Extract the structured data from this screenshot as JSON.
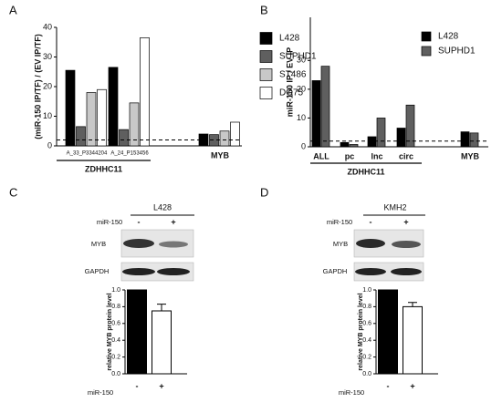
{
  "chart_data": [
    {
      "type": "bar",
      "panel": "A",
      "ylabel": "(miR-150 IP/TF) / (EV IP/TF)",
      "categories": [
        "A_33_P3344204",
        "A_24_P153456",
        "MYB"
      ],
      "group_label": "ZDHHC11",
      "series": [
        {
          "name": "L428",
          "color": "#000000",
          "values": [
            25.5,
            26.5,
            4
          ]
        },
        {
          "name": "SUPHD1",
          "color": "#5f5f5f",
          "values": [
            6.5,
            5.5,
            3.8
          ]
        },
        {
          "name": "ST486",
          "color": "#c8c8c8",
          "values": [
            18,
            14.5,
            5
          ]
        },
        {
          "name": "DG75",
          "color": "#ffffff",
          "values": [
            19,
            36.5,
            8
          ]
        }
      ],
      "ylim": [
        0,
        40
      ],
      "yticks": [
        0,
        10,
        20,
        30,
        40
      ],
      "reference_line": 2
    },
    {
      "type": "bar",
      "panel": "B",
      "ylabel": "miR-150 IP / EV IP",
      "categories": [
        "ALL",
        "pc",
        "lnc",
        "circ",
        "MYB"
      ],
      "group_label": "ZDHHC11",
      "series": [
        {
          "name": "L428",
          "color": "#000000",
          "values": [
            23,
            1.5,
            3.5,
            6.5,
            5.2
          ]
        },
        {
          "name": "SUPHD1",
          "color": "#5f5f5f",
          "values": [
            28,
            0.8,
            10,
            14.5,
            4.8
          ]
        }
      ],
      "ylim": [
        0,
        45
      ],
      "yticks": [
        0,
        10,
        20,
        30
      ],
      "reference_line": 2
    },
    {
      "type": "bar",
      "panel": "C",
      "ylabel": "relative MYB protein level",
      "xlabel": "miR-150",
      "categories": [
        "-",
        "+"
      ],
      "values": [
        1,
        0.75
      ],
      "errors": [
        null,
        0.08
      ],
      "colors": [
        "#000000",
        "#ffffff"
      ],
      "ylim": [
        0,
        1
      ],
      "yticks": [
        {
          "value": 0,
          "label": "0.0"
        },
        {
          "value": 0.2,
          "label": "0.2"
        },
        {
          "value": 0.4,
          "label": "0.4"
        },
        {
          "value": 0.6,
          "label": "0.6"
        },
        {
          "value": 0.8,
          "label": "0.8"
        },
        {
          "value": 1,
          "label": "1.0"
        }
      ]
    },
    {
      "type": "bar",
      "panel": "D",
      "ylabel": "relative MYB protein level",
      "xlabel": "miR-150",
      "categories": [
        "-",
        "+"
      ],
      "values": [
        1,
        0.8
      ],
      "errors": [
        null,
        0.05
      ],
      "colors": [
        "#000000",
        "#ffffff"
      ],
      "ylim": [
        0,
        1
      ],
      "yticks": [
        {
          "value": 0,
          "label": "0.0"
        },
        {
          "value": 0.2,
          "label": "0.2"
        },
        {
          "value": 0.4,
          "label": "0.4"
        },
        {
          "value": 0.6,
          "label": "0.6"
        },
        {
          "value": 0.8,
          "label": "0.8"
        },
        {
          "value": 1,
          "label": "1.0"
        }
      ]
    }
  ],
  "blots": [
    {
      "title": "L428",
      "treatment": "miR-150",
      "lanes": [
        "-",
        "+"
      ],
      "rows": [
        "MYB",
        "GAPDH"
      ]
    },
    {
      "title": "KMH2",
      "treatment": "miR-150",
      "lanes": [
        "-",
        "+"
      ],
      "rows": [
        "MYB",
        "GAPDH"
      ]
    }
  ]
}
